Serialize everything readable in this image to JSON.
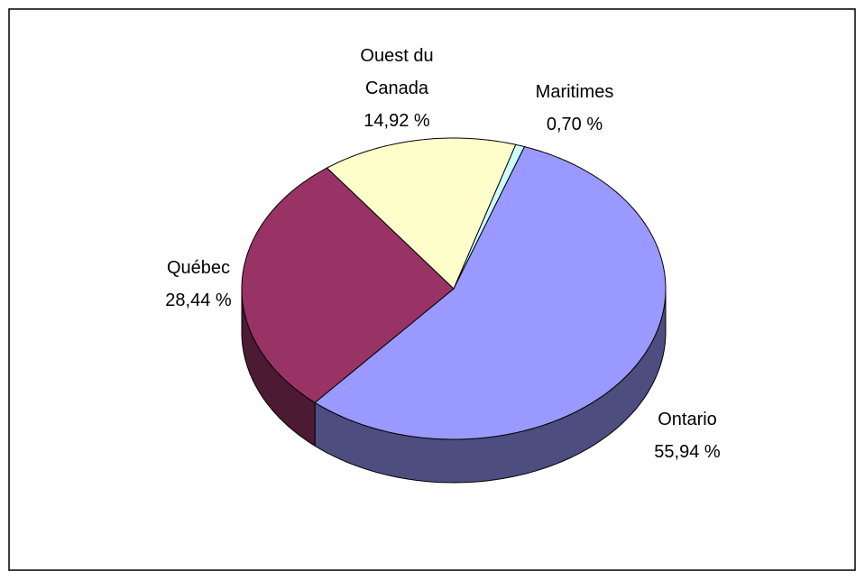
{
  "chart_data": {
    "type": "pie3d",
    "categories": [
      "Maritimes",
      "Ontario",
      "Québec",
      "Ouest du Canada"
    ],
    "values": [
      0.7,
      55.94,
      28.44,
      14.92
    ],
    "value_labels": [
      "0,70 %",
      "55,94 %",
      "28,44 %",
      "14,92 %"
    ],
    "colors": [
      "#ccffff",
      "#9999ff",
      "#993366",
      "#ffffcc"
    ]
  }
}
